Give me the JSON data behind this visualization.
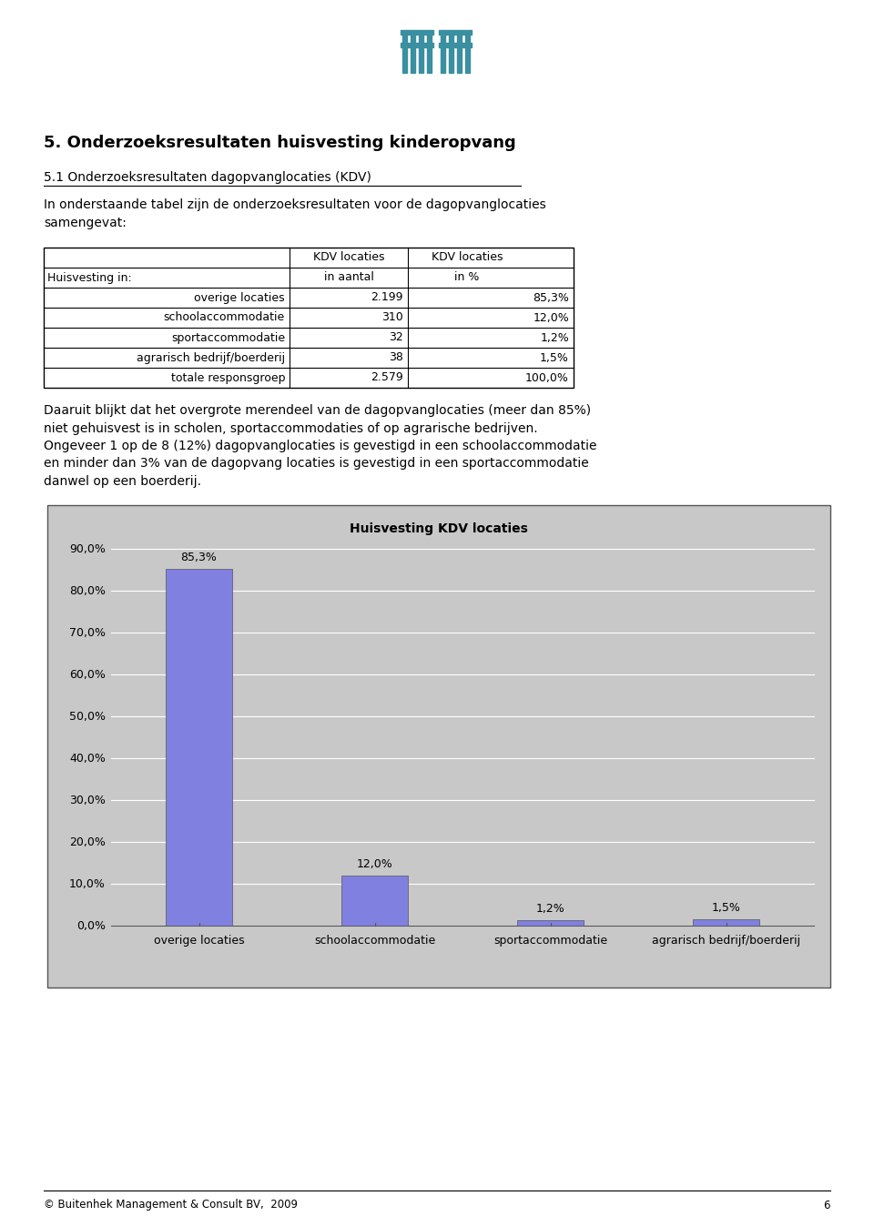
{
  "page_title": "5. Onderzoeksresultaten huisvesting kinderopvang",
  "section_title": "5.1 Onderzoeksresultaten dagopvanglocaties (KDV)",
  "intro_text": "In onderstaande tabel zijn de onderzoeksresultaten voor de dagopvanglocaties\nsamengevat:",
  "table_col0_header": "",
  "table_col1_header": "KDV locaties",
  "table_col2_header": "KDV locaties",
  "table_col1_sub": "in aantal",
  "table_col2_sub": "in %",
  "table_col0_sub": "Huisvesting in:",
  "table_rows": [
    [
      "overige locaties",
      "2.199",
      "85,3%"
    ],
    [
      "schoolaccommodatie",
      "310",
      "12,0%"
    ],
    [
      "sportaccommodatie",
      "32",
      "1,2%"
    ],
    [
      "agrarisch bedrijf/boerderij",
      "38",
      "1,5%"
    ],
    [
      "totale responsgroep",
      "2.579",
      "100,0%"
    ]
  ],
  "paragraph_text": "Daaruit blijkt dat het overgrote merendeel van de dagopvanglocaties (meer dan 85%)\nniet gehuisvest is in scholen, sportaccommodaties of op agrarische bedrijven.\nOngeveer 1 op de 8 (12%) dagopvanglocaties is gevestigd in een schoolaccommodatie\nen minder dan 3% van de dagopvang locaties is gevestigd in een sportaccommodatie\ndanwel op een boerderij.",
  "chart_title": "Huisvesting KDV locaties",
  "categories": [
    "overige locaties",
    "schoolaccommodatie",
    "sportaccommodatie",
    "agrarisch bedrijf/boerderij"
  ],
  "values": [
    85.3,
    12.0,
    1.2,
    1.5
  ],
  "labels": [
    "85,3%",
    "12,0%",
    "1,2%",
    "1,5%"
  ],
  "bar_color": "#8080e0",
  "plot_bg_color": "#c8c8c8",
  "ylim": [
    0,
    90
  ],
  "yticks": [
    0,
    10,
    20,
    30,
    40,
    50,
    60,
    70,
    80,
    90
  ],
  "ytick_labels": [
    "0,0%",
    "10,0%",
    "20,0%",
    "30,0%",
    "40,0%",
    "50,0%",
    "60,0%",
    "70,0%",
    "80,0%",
    "90,0%"
  ],
  "footer_text": "© Buitenhek Management & Consult BV,  2009",
  "footer_page": "6",
  "bg_color": "#ffffff",
  "title_fontsize": 13,
  "section_fontsize": 10,
  "body_fontsize": 10,
  "chart_title_fontsize": 10,
  "tick_fontsize": 9,
  "label_fontsize": 9,
  "xticklabel_fontsize": 9,
  "table_fontsize": 9,
  "logo_color": "#3a8fa0"
}
